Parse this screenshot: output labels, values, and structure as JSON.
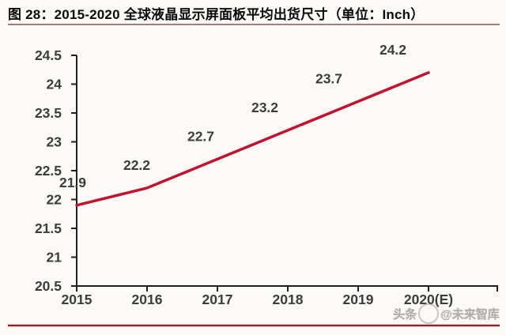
{
  "title": {
    "text": "图 28：2015-2020 全球液晶显示屏面板平均出货尺寸（单位：Inch）"
  },
  "watermark": {
    "prefix": "头条",
    "handle": "@未来智库",
    "logo": "circular-seal-icon"
  },
  "colors": {
    "background": "#fbfaf7",
    "line": "#C2122D",
    "axis": "#1f1f1f",
    "tick_text": "#3c3c3c",
    "title_underline": "#a17e7e",
    "bottom_rule": "#8e2026"
  },
  "chart_data": {
    "type": "line",
    "title": "2015-2020 全球液晶显示屏面板平均出货尺寸",
    "unit": "Inch",
    "categories": [
      "2015",
      "2016",
      "2017",
      "2018",
      "2019",
      "2020(E)"
    ],
    "values": [
      21.9,
      22.2,
      22.7,
      23.2,
      23.7,
      24.2
    ],
    "data_labels": [
      "21.9",
      "22.2",
      "22.7",
      "23.2",
      "23.7",
      "24.2"
    ],
    "xlabel": "",
    "ylabel": "",
    "ylim": [
      20.5,
      24.5
    ],
    "ytick_step": 0.5,
    "ytick_labels": [
      "20.5",
      "21",
      "21.5",
      "22",
      "22.5",
      "23",
      "23.5",
      "24",
      "24.5"
    ],
    "grid": false,
    "legend": false,
    "markers": false,
    "line_color": "#C2122D"
  }
}
